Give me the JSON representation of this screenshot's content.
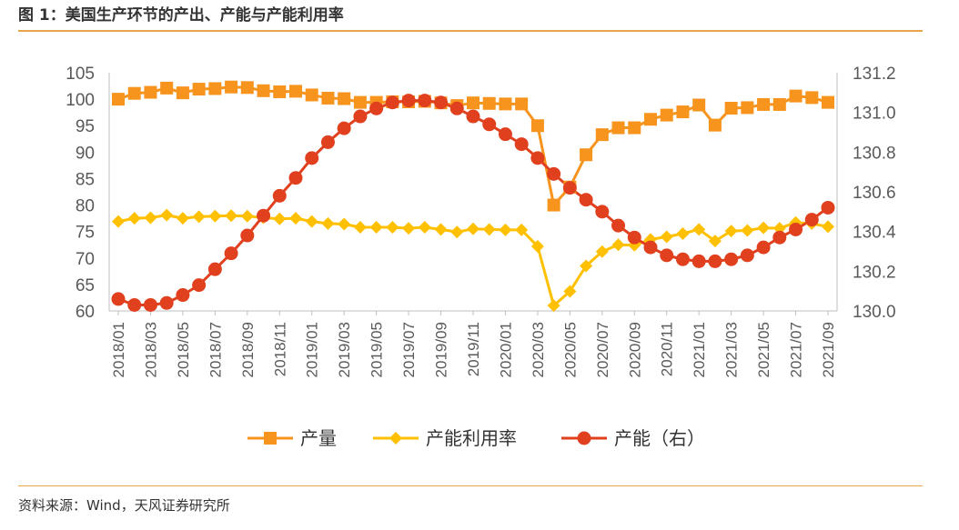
{
  "header": {
    "title": "图 1：美国生产环节的产出、产能与产能利用率"
  },
  "footer": {
    "source": "资料来源：Wind，天风证券研究所"
  },
  "colors": {
    "output": "#f7941d",
    "utilization": "#ffc000",
    "capacity": "#e0401e",
    "rule": "#e8a64a",
    "axis": "#bfbfbf"
  },
  "chart_data": {
    "type": "line",
    "title": "",
    "x": [
      "2018/01",
      "2018/02",
      "2018/03",
      "2018/04",
      "2018/05",
      "2018/06",
      "2018/07",
      "2018/08",
      "2018/09",
      "2018/10",
      "2018/11",
      "2018/12",
      "2019/01",
      "2019/02",
      "2019/03",
      "2019/04",
      "2019/05",
      "2019/06",
      "2019/07",
      "2019/08",
      "2019/09",
      "2019/10",
      "2019/11",
      "2019/12",
      "2020/01",
      "2020/02",
      "2020/03",
      "2020/04",
      "2020/05",
      "2020/06",
      "2020/07",
      "2020/08",
      "2020/09",
      "2020/10",
      "2020/11",
      "2020/12",
      "2021/01",
      "2021/02",
      "2021/03",
      "2021/04",
      "2021/05",
      "2021/06",
      "2021/07",
      "2021/08",
      "2021/09"
    ],
    "x_tick_labels": [
      "2018/01",
      "2018/03",
      "2018/05",
      "2018/07",
      "2018/09",
      "2018/11",
      "2019/01",
      "2019/03",
      "2019/05",
      "2019/07",
      "2019/09",
      "2019/11",
      "2020/01",
      "2020/03",
      "2020/05",
      "2020/07",
      "2020/09",
      "2020/11",
      "2021/01",
      "2021/03",
      "2021/05",
      "2021/07",
      "2021/09"
    ],
    "y_left": {
      "min": 60,
      "max": 105,
      "step": 5,
      "ticks": [
        "60",
        "65",
        "70",
        "75",
        "80",
        "85",
        "90",
        "95",
        "100",
        "105"
      ]
    },
    "y_right": {
      "min": 130.0,
      "max": 131.2,
      "step": 0.2,
      "ticks": [
        "130.0",
        "130.2",
        "130.4",
        "130.6",
        "130.8",
        "131.0",
        "131.2"
      ]
    },
    "grid": false,
    "legend_position": "bottom",
    "series": [
      {
        "name": "产量",
        "axis": "left",
        "marker": "square",
        "values": [
          100.0,
          101.1,
          101.3,
          102.1,
          101.2,
          101.9,
          102.0,
          102.3,
          102.2,
          101.6,
          101.4,
          101.5,
          100.8,
          100.2,
          100.1,
          99.4,
          99.4,
          99.5,
          99.5,
          99.6,
          99.3,
          98.8,
          99.3,
          99.2,
          99.1,
          99.1,
          95.0,
          80.0,
          83.4,
          89.5,
          93.3,
          94.6,
          94.6,
          96.2,
          97.0,
          97.6,
          98.9,
          95.1,
          98.3,
          98.4,
          99.0,
          99.0,
          100.6,
          100.3,
          99.4
        ]
      },
      {
        "name": "产能利用率",
        "axis": "left",
        "marker": "diamond",
        "values": [
          76.9,
          77.5,
          77.6,
          78.1,
          77.5,
          77.8,
          77.9,
          78.0,
          77.9,
          77.6,
          77.4,
          77.5,
          76.9,
          76.5,
          76.4,
          75.8,
          75.8,
          75.8,
          75.6,
          75.8,
          75.4,
          74.9,
          75.5,
          75.4,
          75.3,
          75.3,
          72.2,
          61.0,
          63.7,
          68.5,
          71.2,
          72.5,
          72.4,
          73.5,
          74.0,
          74.6,
          75.4,
          73.2,
          75.1,
          75.2,
          75.7,
          75.6,
          76.7,
          76.5,
          75.9
        ]
      },
      {
        "name": "产能（右）",
        "axis": "right",
        "marker": "circle",
        "values": [
          130.06,
          130.03,
          130.03,
          130.04,
          130.08,
          130.13,
          130.21,
          130.29,
          130.38,
          130.48,
          130.58,
          130.67,
          130.77,
          130.85,
          130.92,
          130.98,
          131.02,
          131.05,
          131.06,
          131.06,
          131.05,
          131.02,
          130.98,
          130.94,
          130.89,
          130.84,
          130.77,
          130.69,
          130.62,
          130.56,
          130.5,
          130.43,
          130.37,
          130.32,
          130.28,
          130.26,
          130.25,
          130.25,
          130.26,
          130.28,
          130.32,
          130.37,
          130.41,
          130.46,
          130.52
        ]
      }
    ]
  }
}
